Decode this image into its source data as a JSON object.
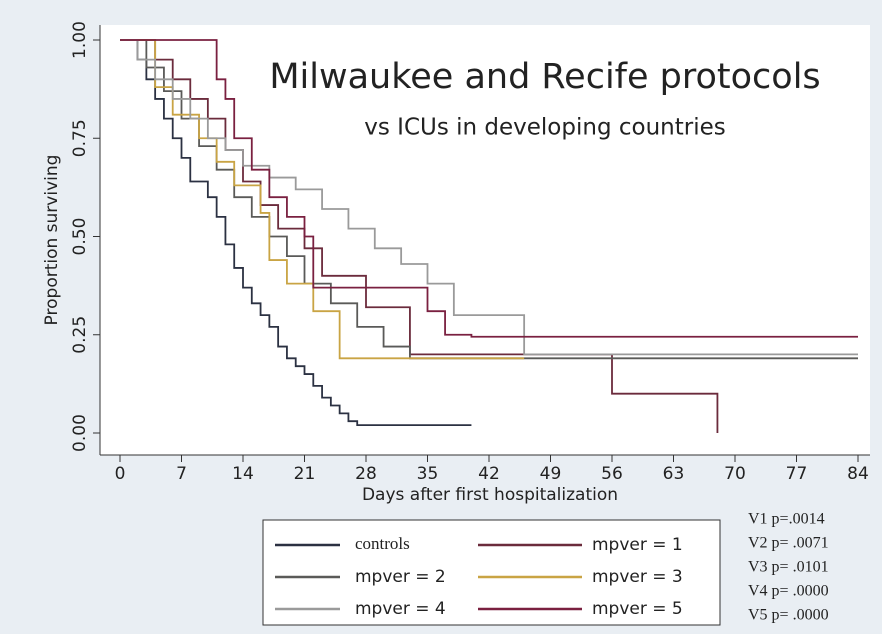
{
  "chart_data": {
    "type": "step",
    "title": "Milwaukee and Recife protocols",
    "subtitle": "vs ICUs in developing countries",
    "x_label": "Days after first hospitalization",
    "y_label": "Proportion surviving",
    "xlim": [
      0,
      84
    ],
    "xticks": [
      0,
      7,
      14,
      21,
      28,
      35,
      42,
      49,
      56,
      63,
      70,
      77,
      84
    ],
    "ylim": [
      0,
      1
    ],
    "yticks": [
      {
        "value": 0,
        "label": "0.00"
      },
      0.25,
      {
        "value": 0.5,
        "label": "0.50"
      },
      0.75,
      {
        "value": 1,
        "label": "1.00"
      }
    ],
    "series": [
      {
        "name": "controls",
        "color": "#2b3142",
        "x": [
          0,
          2,
          3,
          4,
          5,
          6,
          7,
          8,
          10,
          11,
          12,
          13,
          14,
          15,
          16,
          17,
          18,
          19,
          20,
          21,
          22,
          23,
          24,
          25,
          26,
          27,
          40
        ],
        "values": [
          1,
          0.95,
          0.9,
          0.85,
          0.8,
          0.75,
          0.7,
          0.64,
          0.6,
          0.55,
          0.48,
          0.42,
          0.37,
          0.33,
          0.3,
          0.27,
          0.22,
          0.19,
          0.17,
          0.15,
          0.12,
          0.09,
          0.07,
          0.05,
          0.03,
          0.02,
          0.02
        ]
      },
      {
        "name": "mpver = 1",
        "color": "#6b2b3c",
        "x": [
          0,
          4,
          6,
          8,
          10,
          12,
          14,
          16,
          18,
          21,
          23,
          28,
          33,
          56,
          68
        ],
        "values": [
          1,
          0.95,
          0.9,
          0.85,
          0.8,
          0.72,
          0.64,
          0.58,
          0.52,
          0.47,
          0.4,
          0.32,
          0.2,
          0.1,
          0
        ]
      },
      {
        "name": "mpver = 2",
        "color": "#5a5a58",
        "x": [
          0,
          3,
          5,
          7,
          9,
          11,
          13,
          15,
          17,
          19,
          21,
          24,
          27,
          30,
          33,
          84
        ],
        "values": [
          1,
          0.93,
          0.87,
          0.8,
          0.73,
          0.67,
          0.6,
          0.55,
          0.5,
          0.45,
          0.38,
          0.33,
          0.27,
          0.22,
          0.19,
          0.19
        ]
      },
      {
        "name": "mpver = 3",
        "color": "#c9a444",
        "x": [
          0,
          4,
          6,
          9,
          11,
          13,
          16,
          17,
          19,
          22,
          25,
          46
        ],
        "values": [
          1,
          0.88,
          0.81,
          0.75,
          0.69,
          0.63,
          0.56,
          0.44,
          0.38,
          0.31,
          0.19,
          0.19
        ]
      },
      {
        "name": "mpver = 4",
        "color": "#9a9a9a",
        "x": [
          0,
          2,
          4,
          6,
          8,
          10,
          12,
          14,
          17,
          20,
          23,
          26,
          29,
          32,
          35,
          38,
          46,
          84
        ],
        "values": [
          1,
          0.95,
          0.9,
          0.85,
          0.8,
          0.75,
          0.72,
          0.68,
          0.65,
          0.62,
          0.57,
          0.52,
          0.47,
          0.43,
          0.38,
          0.3,
          0.2,
          0.2
        ]
      },
      {
        "name": "mpver = 5",
        "color": "#7a2040",
        "x": [
          0,
          11,
          12,
          13,
          15,
          17,
          19,
          21,
          22,
          30,
          35,
          37,
          40,
          84
        ],
        "values": [
          1,
          0.9,
          0.85,
          0.75,
          0.67,
          0.6,
          0.55,
          0.5,
          0.37,
          0.37,
          0.31,
          0.25,
          0.245,
          0.245
        ]
      }
    ],
    "annotations": [
      "V1 p=.0014",
      "V2 p= .0071",
      "V3 p= .0101",
      "V4 p= .0000",
      "V5 p= .0000"
    ]
  }
}
